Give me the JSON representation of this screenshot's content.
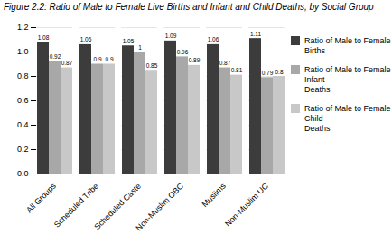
{
  "chart_data": {
    "type": "bar",
    "title": "Figure 2.2: Ratio of Male to Female Live Births and Infant and Child Deaths, by Social Group",
    "categories": [
      "All Groups",
      "Scheduled Tribe",
      "Scheduled Caste",
      "Non-Muslim OBC",
      "Muslims",
      "Non-Muslim UC"
    ],
    "series": [
      {
        "name": "Ratio of Male to Female Births",
        "color": "#3c3c3c",
        "values": [
          1.08,
          1.06,
          1.05,
          1.09,
          1.06,
          1.11
        ],
        "value_labels": [
          "1.08",
          "1.06",
          "1.05",
          "1.09",
          "1.06",
          "1.11"
        ]
      },
      {
        "name": "Ratio of Male to Female Infant\nDeaths",
        "color": "#a8a8a8",
        "values": [
          0.92,
          0.9,
          1.0,
          0.96,
          0.87,
          0.79
        ],
        "value_labels": [
          "0.92",
          "0.9",
          "1",
          "0.96",
          "0.87",
          "0.79"
        ]
      },
      {
        "name": "Ratio of Male to Female Child\nDeaths",
        "color": "#c8c8c8",
        "values": [
          0.87,
          0.9,
          0.85,
          0.89,
          0.81,
          0.8
        ],
        "value_labels": [
          "0.87",
          "0.9",
          "0.85",
          "0.89",
          "0.81",
          "0.8"
        ]
      }
    ],
    "ylim": [
      0,
      1.2
    ],
    "yticks": [
      0,
      0.2,
      0.4,
      0.6,
      0.8,
      1.0,
      1.2
    ],
    "grid": true,
    "legend": "right",
    "data_labels": true
  }
}
